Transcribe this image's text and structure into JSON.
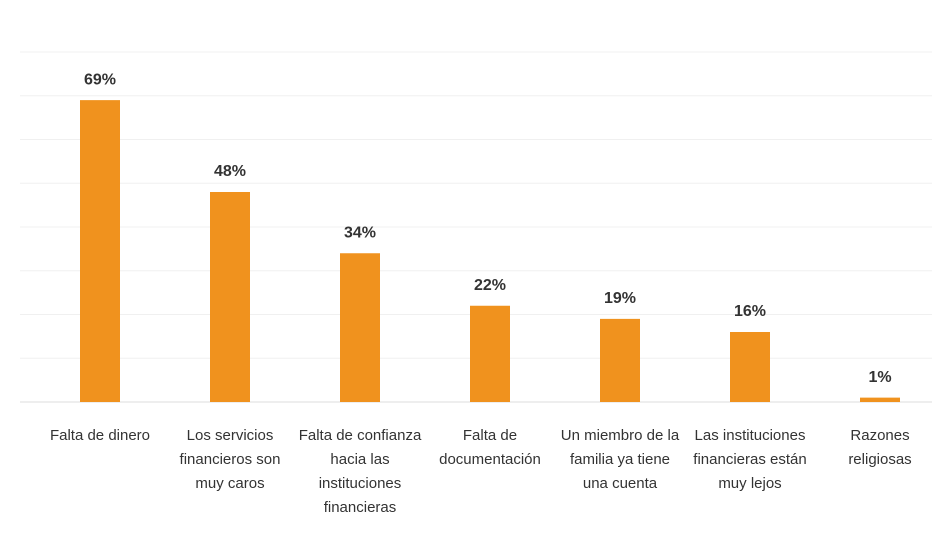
{
  "chart_data": {
    "type": "bar",
    "categories": [
      "Falta de dinero",
      "Los servicios financieros son muy caros",
      "Falta de confianza hacia las instituciones financieras",
      "Falta de documentación",
      "Un miembro de la familia ya tiene una cuenta",
      "Las instituciones financieras están muy lejos",
      "Razones religiosas"
    ],
    "values": [
      69,
      48,
      34,
      22,
      19,
      16,
      1
    ],
    "value_labels": [
      "69%",
      "48%",
      "34%",
      "22%",
      "19%",
      "16%",
      "1%"
    ],
    "color": "#f0921e",
    "ylim": [
      0,
      80
    ],
    "yticks": [
      0,
      10,
      20,
      30,
      40,
      50,
      60,
      70,
      80
    ],
    "grid": true
  }
}
